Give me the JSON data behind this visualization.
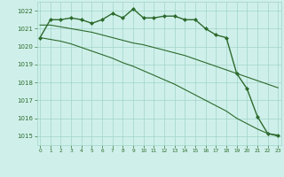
{
  "line1": {
    "x": [
      0,
      1,
      2,
      3,
      4,
      5,
      6,
      7,
      8,
      9,
      10,
      11,
      12,
      13,
      14,
      15,
      16,
      17,
      18,
      19,
      20,
      21,
      22,
      23
    ],
    "y": [
      1020.5,
      1021.5,
      1021.5,
      1021.6,
      1021.5,
      1021.3,
      1021.5,
      1021.85,
      1021.6,
      1022.1,
      1021.6,
      1021.6,
      1021.7,
      1021.7,
      1021.5,
      1021.5,
      1021.0,
      1020.65,
      1020.5,
      1018.5,
      1017.65,
      1016.1,
      1015.15,
      1015.05
    ],
    "color": "#2d6a2d",
    "marker": "D",
    "markersize": 2.0,
    "linewidth": 1.0
  },
  "line2": {
    "x": [
      0,
      1,
      2,
      3,
      4,
      5,
      6,
      7,
      8,
      9,
      10,
      11,
      12,
      13,
      14,
      15,
      16,
      17,
      18,
      19,
      20,
      21,
      22,
      23
    ],
    "y": [
      1021.2,
      1021.2,
      1021.1,
      1021.0,
      1020.9,
      1020.8,
      1020.65,
      1020.5,
      1020.35,
      1020.2,
      1020.1,
      1019.95,
      1019.8,
      1019.65,
      1019.5,
      1019.3,
      1019.1,
      1018.9,
      1018.7,
      1018.5,
      1018.3,
      1018.1,
      1017.9,
      1017.7
    ],
    "color": "#2d6a2d",
    "marker": null,
    "linewidth": 0.8
  },
  "line3": {
    "x": [
      0,
      1,
      2,
      3,
      4,
      5,
      6,
      7,
      8,
      9,
      10,
      11,
      12,
      13,
      14,
      15,
      16,
      17,
      18,
      19,
      20,
      21,
      22,
      23
    ],
    "y": [
      1020.5,
      1020.4,
      1020.3,
      1020.15,
      1019.95,
      1019.75,
      1019.55,
      1019.35,
      1019.1,
      1018.9,
      1018.65,
      1018.4,
      1018.15,
      1017.9,
      1017.6,
      1017.3,
      1017.0,
      1016.7,
      1016.4,
      1016.0,
      1015.7,
      1015.4,
      1015.15,
      1015.0
    ],
    "color": "#2d6a2d",
    "marker": null,
    "linewidth": 0.8
  },
  "bg_color": "#cff0ea",
  "grid_color": "#a0d4c8",
  "line_color": "#2d6a2d",
  "ylim": [
    1014.5,
    1022.5
  ],
  "yticks": [
    1015,
    1016,
    1017,
    1018,
    1019,
    1020,
    1021,
    1022
  ],
  "xlim": [
    -0.3,
    23.3
  ],
  "xticks": [
    0,
    1,
    2,
    3,
    4,
    5,
    6,
    7,
    8,
    9,
    10,
    11,
    12,
    13,
    14,
    15,
    16,
    17,
    18,
    19,
    20,
    21,
    22,
    23
  ],
  "xlabel_bg": "#2d6a2d"
}
